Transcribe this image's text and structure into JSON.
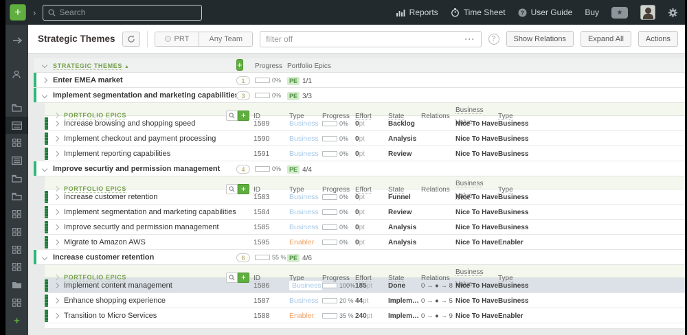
{
  "colors": {
    "accent_green": "#5fae3f",
    "header_green": "#76a04c",
    "theme_bar": "#2eb779",
    "epic_grip": "#1d7d3a",
    "business_type": "#a6c7e7",
    "enabler_type": "#f2a163",
    "selected_row": "#dbe1e6",
    "topbar_bg": "#232a2e"
  },
  "topbar": {
    "add_label": "+",
    "search_placeholder": "Search",
    "nav": [
      {
        "label": "Reports",
        "icon": "bar-chart-icon"
      },
      {
        "label": "Time Sheet",
        "icon": "stopwatch-icon"
      },
      {
        "label": "User Guide",
        "icon": "question-circle-icon"
      }
    ],
    "buy_label": "Buy"
  },
  "toolbar": {
    "title": "Strategic Themes",
    "prt_label": "PRT",
    "team_label": "Any Team",
    "filter_value": "filter off",
    "filter_more": "···",
    "help_label": "?",
    "buttons": [
      "Show Relations",
      "Expand All",
      "Actions"
    ]
  },
  "sidebar": {
    "icons": [
      {
        "name": "collapse-arrow-icon",
        "type": "arrow"
      },
      {
        "name": "user-views-icon",
        "type": "user"
      },
      {
        "name": "folder-lock-icon",
        "type": "folder"
      },
      {
        "name": "board-view-lock-icon",
        "type": "board",
        "selected": true
      },
      {
        "name": "grid-view-lock-icon",
        "type": "grid"
      },
      {
        "name": "list-view-lock-icon",
        "type": "list"
      },
      {
        "name": "folder-lock-icon-2",
        "type": "folder"
      },
      {
        "name": "folder-lock-icon-3",
        "type": "folder"
      },
      {
        "name": "grid-view-lock-icon-2",
        "type": "grid"
      },
      {
        "name": "grid-view-lock-icon-3",
        "type": "grid"
      },
      {
        "name": "grid-view-lock-icon-4",
        "type": "grid"
      },
      {
        "name": "grid-view-lock-icon-5",
        "type": "grid"
      },
      {
        "name": "folder-solid-icon",
        "type": "folderSolid"
      },
      {
        "name": "grid-view-icon-6",
        "type": "grid"
      },
      {
        "name": "add-view-icon",
        "type": "plus"
      }
    ]
  },
  "main": {
    "header": {
      "title": "STRATEGIC THEMES",
      "sort": "▲",
      "add_label": "+",
      "progress_label": "Progress",
      "pe_label": "Portfolio Epics"
    },
    "sub_header": {
      "title": "PORTFOLIO EPICS",
      "add_label": "+",
      "columns": [
        "ID",
        "Type",
        "Progress",
        "Effort",
        "State",
        "Relations",
        "Business Value",
        "Type"
      ]
    },
    "themes": [
      {
        "name": "Enter EMEA market",
        "count": "1",
        "progress_pct": 0,
        "progress_label": "0%",
        "pe_chip": "PE",
        "pe_count": "1/1",
        "expanded": false,
        "epics": []
      },
      {
        "name": "Implement segmentation and marketing capabilities",
        "count": "3",
        "progress_pct": 0,
        "progress_label": "0%",
        "pe_chip": "PE",
        "pe_count": "3/3",
        "expanded": true,
        "epics": [
          {
            "name": "Increase browsing and shopping speed",
            "id": "1589",
            "type": "Business",
            "progress_pct": 0,
            "progress_label": "0%",
            "effort": "0",
            "effort_unit": "pt",
            "state": "Backlog",
            "relations": "",
            "value": "Nice To Have",
            "type2": "Business",
            "selected": false
          },
          {
            "name": "Implement checkout and payment processing",
            "id": "1590",
            "type": "Business",
            "progress_pct": 0,
            "progress_label": "0%",
            "effort": "0",
            "effort_unit": "pt",
            "state": "Analysis",
            "relations": "",
            "value": "Nice To Have",
            "type2": "Business",
            "selected": false
          },
          {
            "name": "Implement reporting capabilities",
            "id": "1591",
            "type": "Business",
            "progress_pct": 0,
            "progress_label": "0%",
            "effort": "0",
            "effort_unit": "pt",
            "state": "Review",
            "relations": "",
            "value": "Nice To Have",
            "type2": "Business",
            "selected": false
          }
        ]
      },
      {
        "name": "Improve securtiy and permission management",
        "count": "4",
        "progress_pct": 0,
        "progress_label": "0%",
        "pe_chip": "PE",
        "pe_count": "4/4",
        "expanded": true,
        "epics": [
          {
            "name": "Increase customer retention",
            "id": "1583",
            "type": "Business",
            "progress_pct": 0,
            "progress_label": "0%",
            "effort": "0",
            "effort_unit": "pt",
            "state": "Funnel",
            "relations": "",
            "value": "Nice To Have",
            "type2": "Business",
            "selected": false
          },
          {
            "name": "Implement segmentation and marketing capabilities",
            "id": "1584",
            "type": "Business",
            "progress_pct": 0,
            "progress_label": "0%",
            "effort": "0",
            "effort_unit": "pt",
            "state": "Review",
            "relations": "",
            "value": "Nice To Have",
            "type2": "Business",
            "selected": false
          },
          {
            "name": "Improve securtly and permission management",
            "id": "1585",
            "type": "Business",
            "progress_pct": 0,
            "progress_label": "0%",
            "effort": "0",
            "effort_unit": "pt",
            "state": "Analysis",
            "relations": "",
            "value": "Nice To Have",
            "type2": "Business",
            "selected": false
          },
          {
            "name": "Migrate to Amazon AWS",
            "id": "1595",
            "type": "Enabler",
            "progress_pct": 0,
            "progress_label": "0%",
            "effort": "0",
            "effort_unit": "pt",
            "state": "Analysis",
            "relations": "",
            "value": "Nice To Have",
            "type2": "Enabler",
            "selected": false
          }
        ]
      },
      {
        "name": "Increase customer retention",
        "count": "6",
        "progress_pct": 55,
        "progress_label": "55 %",
        "pe_chip": "PE",
        "pe_count": "4/6",
        "expanded": true,
        "epics": [
          {
            "name": "Implement content management",
            "id": "1586",
            "type": "Business",
            "progress_pct": 100,
            "progress_label": "100%",
            "effort": "185",
            "effort_unit": "pt",
            "state": "Done",
            "relations": "0 → ● → 8",
            "value": "Nice To Have",
            "type2": "Business",
            "selected": true
          },
          {
            "name": "Enhance shopping experience",
            "id": "1587",
            "type": "Business",
            "progress_pct": 20,
            "progress_label": "20 %",
            "effort": "44",
            "effort_unit": "pt",
            "state": "Implem…",
            "relations": "0 → ● → 5",
            "value": "Nice To Have",
            "type2": "Business",
            "selected": false
          },
          {
            "name": "Transition to Micro Services",
            "id": "1588",
            "type": "Enabler",
            "progress_pct": 35,
            "progress_label": "35 %",
            "effort": "240",
            "effort_unit": "pt",
            "state": "Implem…",
            "relations": "0 → ● → 9",
            "value": "Nice To Have",
            "type2": "Enabler",
            "selected": false
          }
        ]
      }
    ]
  }
}
